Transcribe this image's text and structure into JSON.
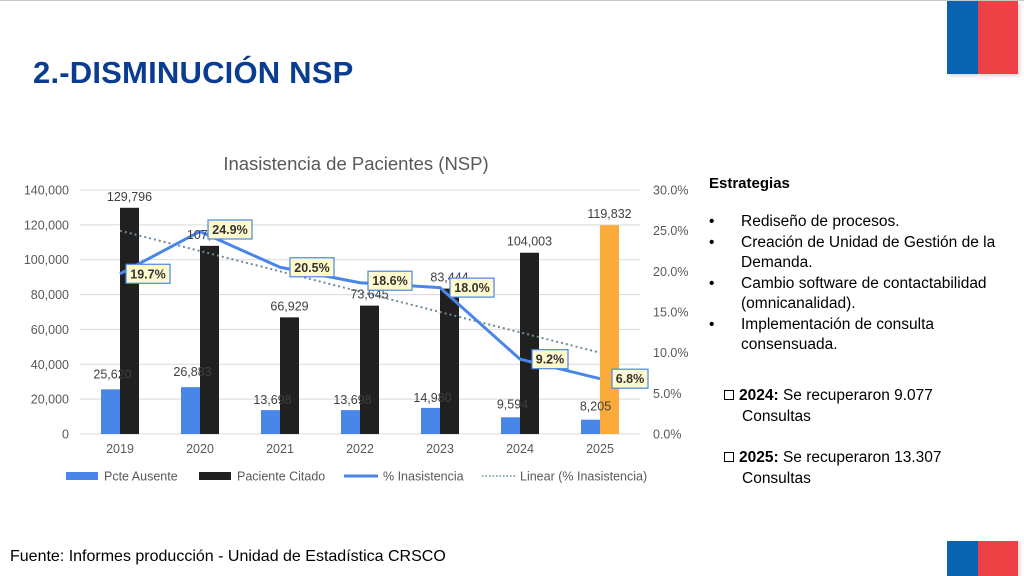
{
  "title": "2.-DISMINUCIÓN NSP",
  "chart_data": {
    "type": "bar",
    "title": "Inasistencia de Pacientes (NSP)",
    "categories": [
      "2019",
      "2020",
      "2021",
      "2022",
      "2023",
      "2024",
      "2025"
    ],
    "series": [
      {
        "name": "Pcte Ausente",
        "type": "bar",
        "axis": "left",
        "color": "#4a86e8",
        "values": [
          25620,
          26883,
          13698,
          13698,
          14980,
          9594,
          8205
        ],
        "labels": [
          "25,620",
          "26,883",
          "13,698",
          "13,698",
          "14,980",
          "9,594",
          "8,205"
        ]
      },
      {
        "name": "Paciente Citado",
        "type": "bar",
        "axis": "left",
        "color": "#202020",
        "highlight": {
          "index": 6,
          "color": "#fbab3a"
        },
        "values": [
          129796,
          107964,
          66929,
          73645,
          83444,
          104003,
          119832
        ],
        "labels": [
          "129,796",
          "107,964",
          "66,929",
          "73,645",
          "83,444",
          "104,003",
          "119,832"
        ]
      },
      {
        "name": "% Inasistencia",
        "type": "line",
        "axis": "right",
        "color": "#4a86e8",
        "values": [
          19.7,
          24.9,
          20.5,
          18.6,
          18.0,
          9.2,
          6.8
        ],
        "labels": [
          "19.7%",
          "24.9%",
          "20.5%",
          "18.6%",
          "18.0%",
          "9.2%",
          "6.8%"
        ]
      },
      {
        "name": "Linear (% Inasistencia)",
        "type": "trendline",
        "axis": "right",
        "color": "#6b8a99",
        "values": [
          25.0,
          22.5,
          20.0,
          17.5,
          15.0,
          12.5,
          10.0
        ]
      }
    ],
    "left_axis": {
      "ylim": [
        0,
        140000
      ],
      "ticks": [
        "0",
        "20,000",
        "40,000",
        "60,000",
        "80,000",
        "100,000",
        "120,000",
        "140,000"
      ]
    },
    "right_axis": {
      "ylim": [
        0,
        30
      ],
      "ticks": [
        "0.0%",
        "5.0%",
        "10.0%",
        "15.0%",
        "20.0%",
        "25.0%",
        "30.0%"
      ]
    },
    "grid": true,
    "legend": "bottom",
    "xlabel": "",
    "ylabel": ""
  },
  "sidebar": {
    "heading": "Estrategias",
    "items": [
      "Rediseño de procesos.",
      "Creación de Unidad de Gestión de la Demanda.",
      "Cambio software de contactabilidad (omnicanalidad).",
      "Implementación de consulta consensuada."
    ]
  },
  "recovered": [
    {
      "year": "2024:",
      "text": "Se recuperaron 9.077",
      "line2": "Consultas"
    },
    {
      "year": "2025:",
      "text": "Se recuperaron 13.307",
      "line2": "Consultas"
    }
  ],
  "source": "Fuente: Informes producción -  Unidad de Estadística CRSCO"
}
